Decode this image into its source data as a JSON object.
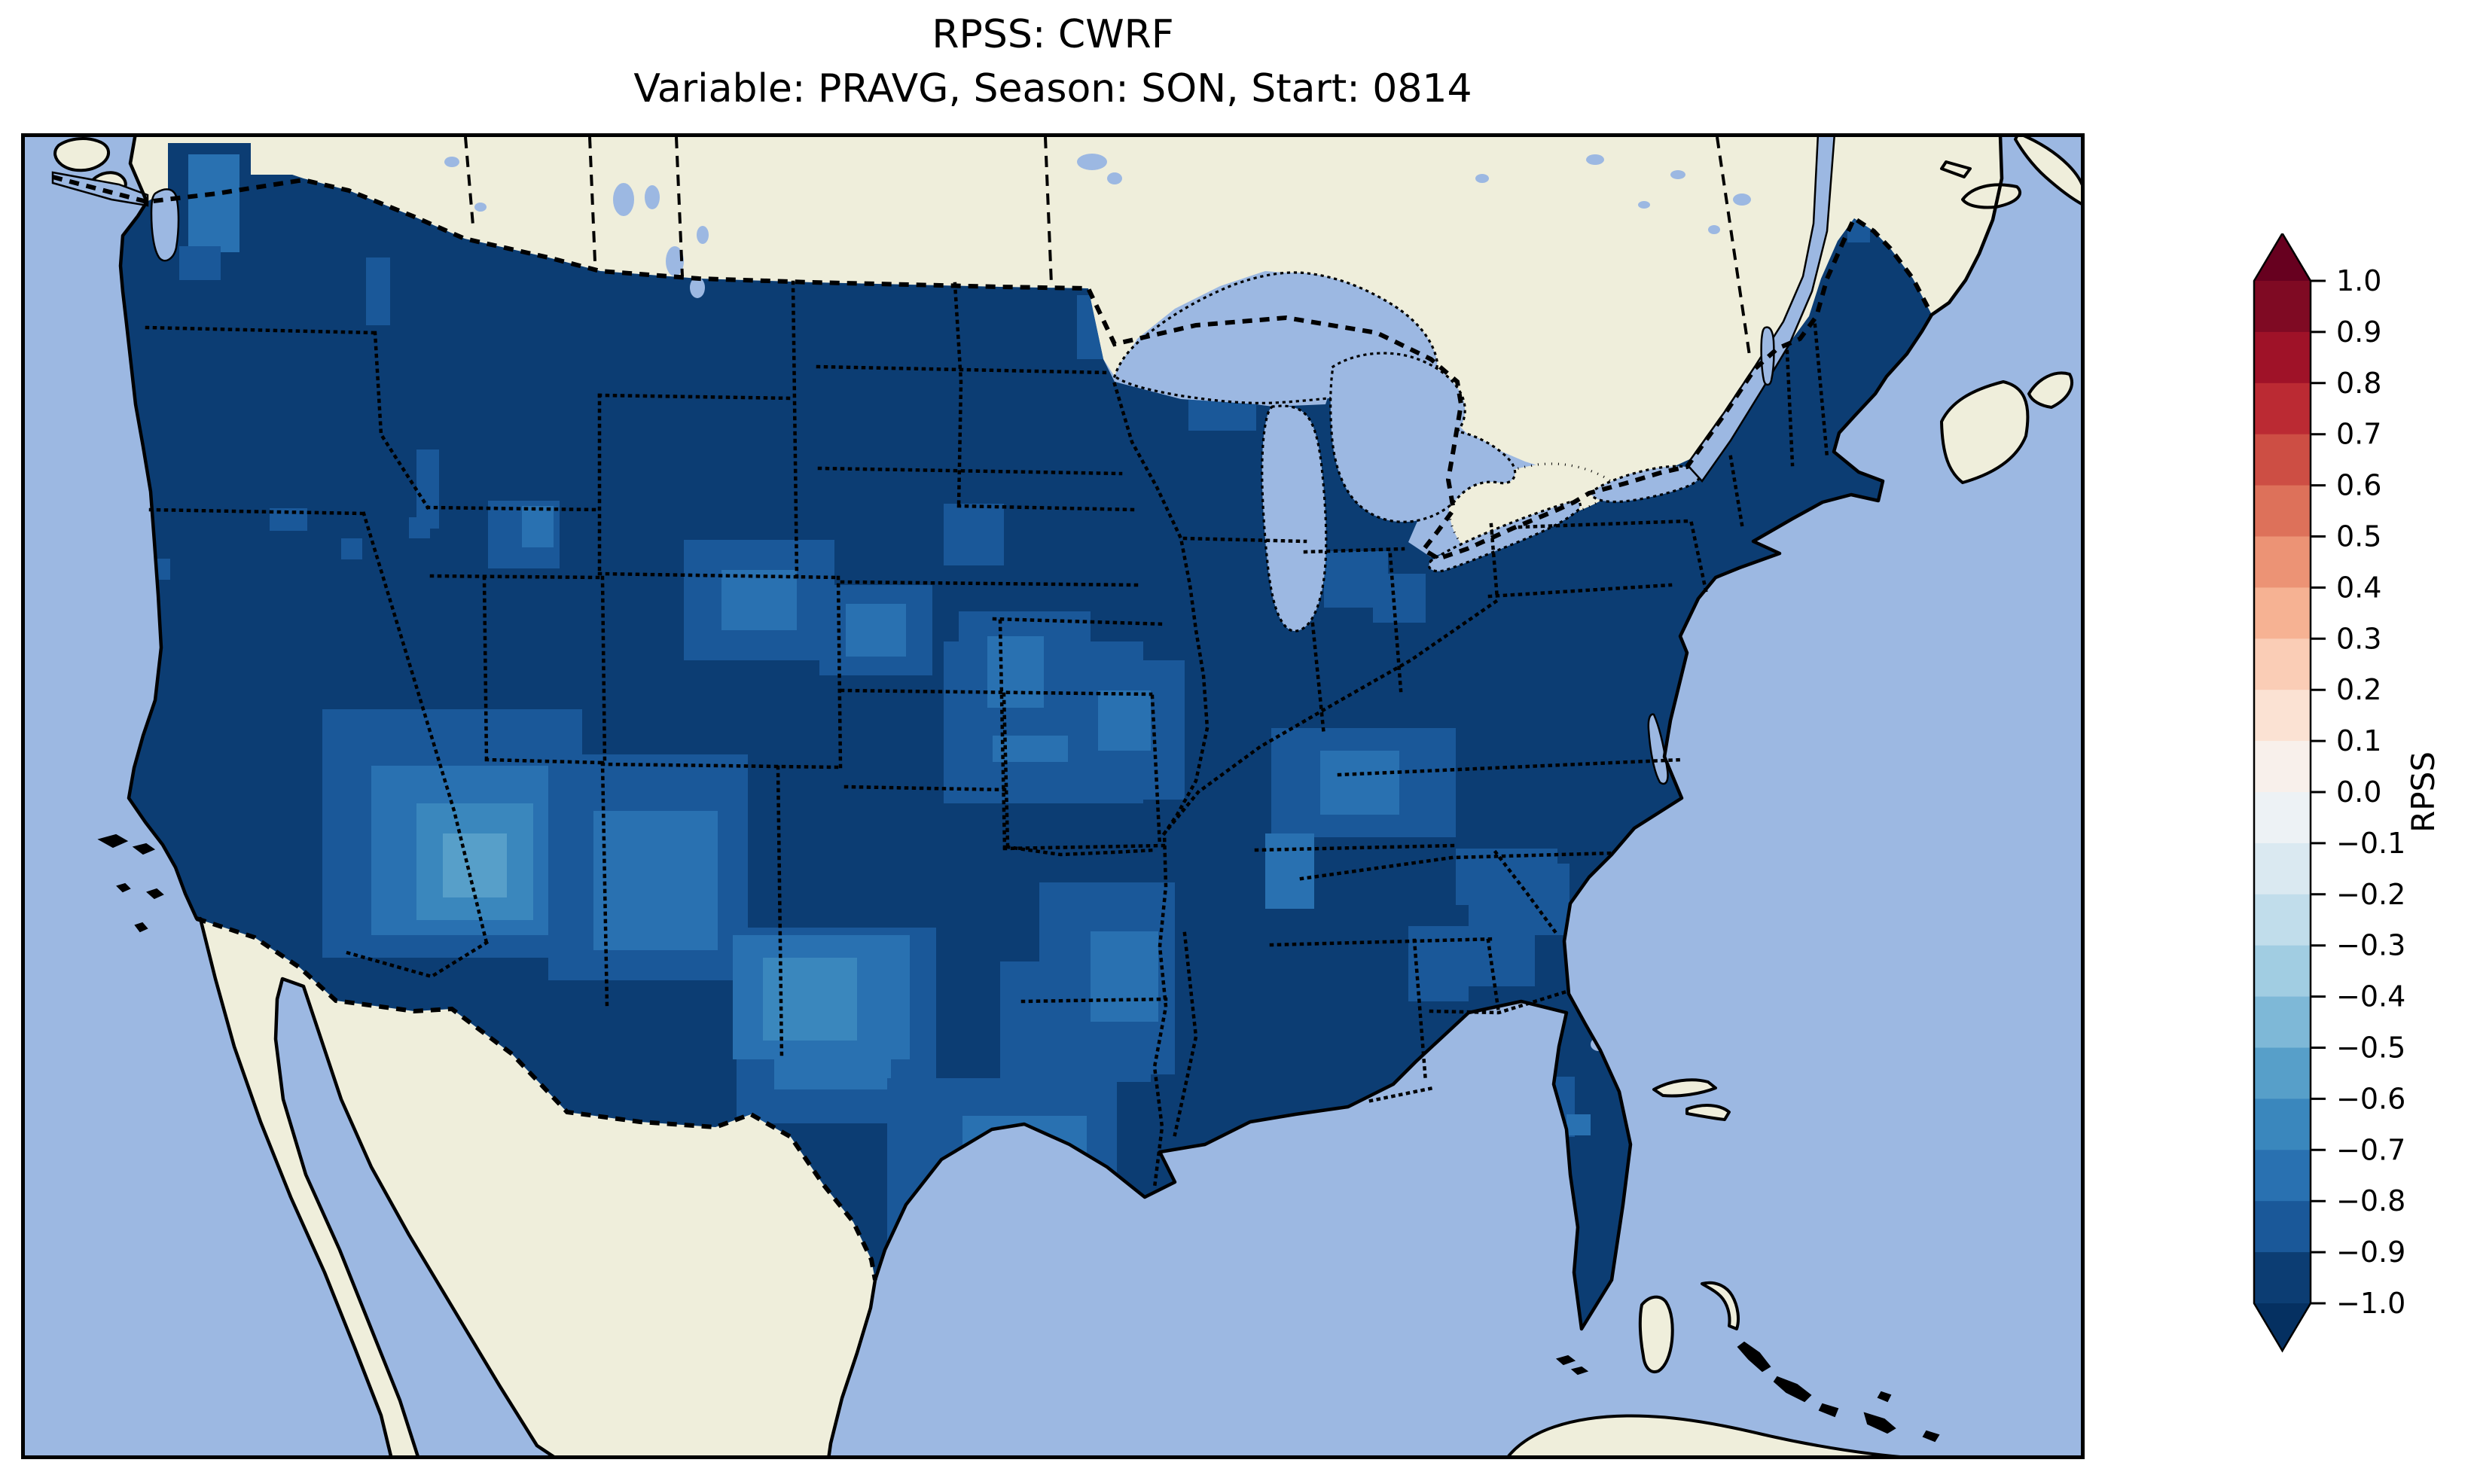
{
  "title": {
    "line1": "RPSS: CWRF",
    "line2": "Variable: PRAVG, Season: SON, Start: 0814"
  },
  "colorbar": {
    "label": "RPSS",
    "orientation": "vertical",
    "extend": "both",
    "arrow_top_color": "#67001F",
    "arrow_bottom_color": "#053061",
    "outline_color": "#000000",
    "ticks": [
      "1.0",
      "0.9",
      "0.8",
      "0.7",
      "0.6",
      "0.5",
      "0.4",
      "0.3",
      "0.2",
      "0.1",
      "0.0",
      "−0.1",
      "−0.2",
      "−0.3",
      "−0.4",
      "−0.5",
      "−0.6",
      "−0.7",
      "−0.8",
      "−0.9",
      "−1.0"
    ],
    "segment_colors_top_to_bottom": [
      "#7F0A23",
      "#9F1228",
      "#BB2A33",
      "#CD4E44",
      "#DD715A",
      "#EC9375",
      "#F6B293",
      "#FACDB6",
      "#FBE2D3",
      "#F8F0EB",
      "#EDF2F5",
      "#DAE9F1",
      "#C1DDEB",
      "#A1CDE2",
      "#7EB8D7",
      "#579FC9",
      "#3A87BD",
      "#2971B1",
      "#1A5899",
      "#0C3D73"
    ]
  },
  "map": {
    "ocean_color": "#9CB8E2",
    "land_color": "#EFEEDB",
    "frame_color": "#000000"
  },
  "chart_data": {
    "type": "heatmap",
    "title": "RPSS: CWRF",
    "subtitle": "Variable: PRAVG, Season: SON, Start: 0814",
    "metric": "RPSS",
    "model": "CWRF",
    "variable": "PRAVG",
    "season": "SON",
    "start": "0814",
    "map_extent": "Contiguous United States with surrounding Canada, Mexico, Gulf of Mexico, Atlantic and Pacific",
    "colormap": "RdBu_r, discrete 0.1 bins, range -1.0 to 1.0, extended both ends",
    "value_range": [
      -1.0,
      1.0
    ],
    "legend_position": "right",
    "base_value_bin": "-1.0 to -0.9 (covers most of CONUS)",
    "palette": [
      "#0C3D73",
      "#1A5899",
      "#2971B1",
      "#3A87BD",
      "#579FC9"
    ],
    "bins_legend": [
      {
        "bin": 0,
        "range": "-1.0 to -0.9",
        "color": "#0C3D73"
      },
      {
        "bin": 1,
        "range": "-0.9 to -0.8",
        "color": "#1A5899"
      },
      {
        "bin": 2,
        "range": "-0.8 to -0.7",
        "color": "#2971B1"
      },
      {
        "bin": 3,
        "range": "-0.7 to -0.6",
        "color": "#3A87BD"
      },
      {
        "bin": 4,
        "range": "-0.6 to -0.5",
        "color": "#579FC9"
      }
    ],
    "regions_summary": [
      {
        "area": "Most of CONUS (Pacific NW, northern plains, Midwest, Northeast, Southeast, Florida)",
        "rpss": "<= -0.9"
      },
      {
        "area": "Southern Arizona / New Mexico",
        "rpss": "-0.9 to -0.5"
      },
      {
        "area": "West and central Texas",
        "rpss": "-0.9 to -0.6"
      },
      {
        "area": "Kansas / Oklahoma / Colorado patches",
        "rpss": "-0.9 to -0.7"
      },
      {
        "area": "Missouri / southern Illinois / Kentucky-Tennessee patches",
        "rpss": "-0.9 to -0.7"
      },
      {
        "area": "Puget Sound area",
        "rpss": "-0.8 to -0.7"
      },
      {
        "area": "Florida Keys cells",
        "rpss": "-0.8 to -0.7"
      }
    ],
    "patches": [
      [
        222,
        28,
        68,
        130,
        2
      ],
      [
        210,
        150,
        55,
        45,
        1
      ],
      [
        458,
        165,
        32,
        90,
        1
      ],
      [
        525,
        420,
        30,
        105,
        1
      ],
      [
        425,
        538,
        28,
        28,
        1
      ],
      [
        330,
        498,
        50,
        30,
        1
      ],
      [
        148,
        565,
        50,
        28,
        1
      ],
      [
        150,
        645,
        28,
        28,
        1
      ],
      [
        515,
        510,
        28,
        28,
        1
      ],
      [
        620,
        488,
        95,
        90,
        1
      ],
      [
        665,
        495,
        42,
        55,
        2
      ],
      [
        1225,
        492,
        80,
        82,
        1
      ],
      [
        880,
        540,
        200,
        160,
        1
      ],
      [
        930,
        580,
        100,
        80,
        2
      ],
      [
        1060,
        600,
        150,
        120,
        1
      ],
      [
        1095,
        625,
        80,
        70,
        2
      ],
      [
        1225,
        675,
        265,
        215,
        1
      ],
      [
        1290,
        715,
        140,
        120,
        2
      ],
      [
        400,
        765,
        345,
        330,
        1
      ],
      [
        465,
        840,
        245,
        225,
        2
      ],
      [
        525,
        890,
        155,
        155,
        3
      ],
      [
        560,
        930,
        85,
        85,
        4
      ],
      [
        700,
        825,
        265,
        300,
        1
      ],
      [
        760,
        900,
        165,
        185,
        2
      ],
      [
        950,
        1055,
        265,
        260,
        1
      ],
      [
        1000,
        1120,
        155,
        150,
        2
      ],
      [
        945,
        1065,
        235,
        165,
        2
      ],
      [
        985,
        1095,
        125,
        110,
        3
      ],
      [
        1150,
        1255,
        305,
        250,
        1
      ],
      [
        1250,
        1305,
        165,
        125,
        2
      ],
      [
        1300,
        1100,
        200,
        160,
        1
      ],
      [
        1245,
        635,
        175,
        165,
        1
      ],
      [
        1283,
        668,
        75,
        95,
        2
      ],
      [
        1390,
        700,
        155,
        185,
        1
      ],
      [
        1430,
        740,
        70,
        80,
        2
      ],
      [
        1660,
        790,
        245,
        145,
        1
      ],
      [
        1725,
        820,
        105,
        85,
        2
      ],
      [
        1652,
        930,
        65,
        100,
        2
      ],
      [
        1905,
        950,
        135,
        75,
        1
      ],
      [
        2000,
        970,
        56,
        95,
        1
      ],
      [
        1922,
        1025,
        88,
        108,
        1
      ],
      [
        1842,
        1053,
        80,
        100,
        1
      ],
      [
        1352,
        995,
        180,
        255,
        1
      ],
      [
        1420,
        1060,
        90,
        120,
        2
      ],
      [
        1730,
        555,
        85,
        75,
        1
      ],
      [
        1795,
        585,
        70,
        65,
        1
      ],
      [
        1402,
        215,
        90,
        85,
        1
      ],
      [
        1550,
        350,
        90,
        45,
        1
      ],
      [
        2425,
        115,
        30,
        30,
        1
      ],
      [
        2035,
        1253,
        28,
        80,
        1
      ],
      [
        2052,
        1303,
        32,
        28,
        2
      ],
      [
        2010,
        1592,
        20,
        20,
        2
      ],
      [
        2048,
        1592,
        20,
        20,
        2
      ],
      [
        2086,
        1592,
        20,
        20,
        2
      ]
    ]
  }
}
